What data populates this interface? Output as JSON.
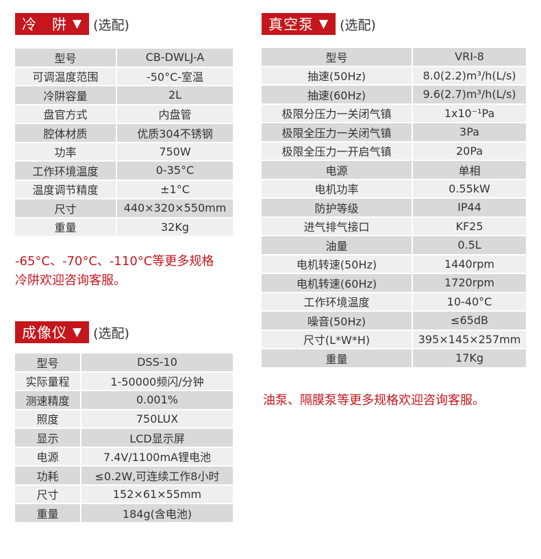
{
  "cold_trap": {
    "title": "冷　阱",
    "arrow": "▼",
    "optional": "(选配)",
    "rows": [
      [
        "型号",
        "CB-DWLJ-A"
      ],
      [
        "可调温度范围",
        "-50°C-室温"
      ],
      [
        "冷阱容量",
        "2L"
      ],
      [
        "盘官方式",
        "内盘管"
      ],
      [
        "腔体材质",
        "优质304不锈钢"
      ],
      [
        "功率",
        "750W"
      ],
      [
        "工作环境温度",
        "0-35°C"
      ],
      [
        "温度调节精度",
        "±1°C"
      ],
      [
        "尺寸",
        "440×320×550mm"
      ],
      [
        "重量",
        "32Kg"
      ]
    ],
    "note_lines": [
      "-65°C、-70°C、-110°C等更多规格",
      "冷阱欢迎咨询客服。"
    ]
  },
  "imager": {
    "title": "成像仪",
    "arrow": "▼",
    "optional": "(选配)",
    "rows": [
      [
        "型号",
        "DSS-10"
      ],
      [
        "实际量程",
        "1-50000频闪/分钟"
      ],
      [
        "测速精度",
        "0.001%"
      ],
      [
        "照度",
        "750LUX"
      ],
      [
        "显示",
        "LCD显示屏"
      ],
      [
        "电源",
        "7.4V/1100mA锂电池"
      ],
      [
        "功耗",
        "≤0.2W,可连续工作8小时"
      ],
      [
        "尺寸",
        "152×61×55mm"
      ],
      [
        "重量",
        "184g(含电池)"
      ]
    ]
  },
  "vacuum_pump": {
    "title": "真空泵",
    "arrow": "▼",
    "optional": "(选配)",
    "rows": [
      [
        "型号",
        "VRI-8"
      ],
      [
        "抽速(50Hz)",
        "8.0(2.2)m³/h(L/s)"
      ],
      [
        "抽速(60Hz)",
        "9.6(2.7)m³/h(L/s)"
      ],
      [
        "极限分压力一关闭气镇",
        "1x10⁻¹Pa"
      ],
      [
        "极限全压力一关闭气镇",
        "3Pa"
      ],
      [
        "极限全压力一开启气镇",
        "20Pa"
      ],
      [
        "电源",
        "单相"
      ],
      [
        "电机功率",
        "0.55kW"
      ],
      [
        "防护等级",
        "IP44"
      ],
      [
        "进气排气接口",
        "KF25"
      ],
      [
        "油量",
        "0.5L"
      ],
      [
        "电机转速(50Hz)",
        "1440rpm"
      ],
      [
        "电机转速(60Hz)",
        "1720rpm"
      ],
      [
        "工作环境温度",
        "10-40°C"
      ],
      [
        "噪音(50Hz)",
        "≤65dB"
      ],
      [
        "尺寸(L*W*H)",
        "395×145×257mm"
      ],
      [
        "重量",
        "17Kg"
      ]
    ],
    "note_lines": [
      "油泵、隔膜泵等更多规格欢迎咨询客服。"
    ]
  },
  "colors": {
    "accent": "#c4161c",
    "row_dark": "#d9d9d9",
    "row_light": "#efefef"
  }
}
